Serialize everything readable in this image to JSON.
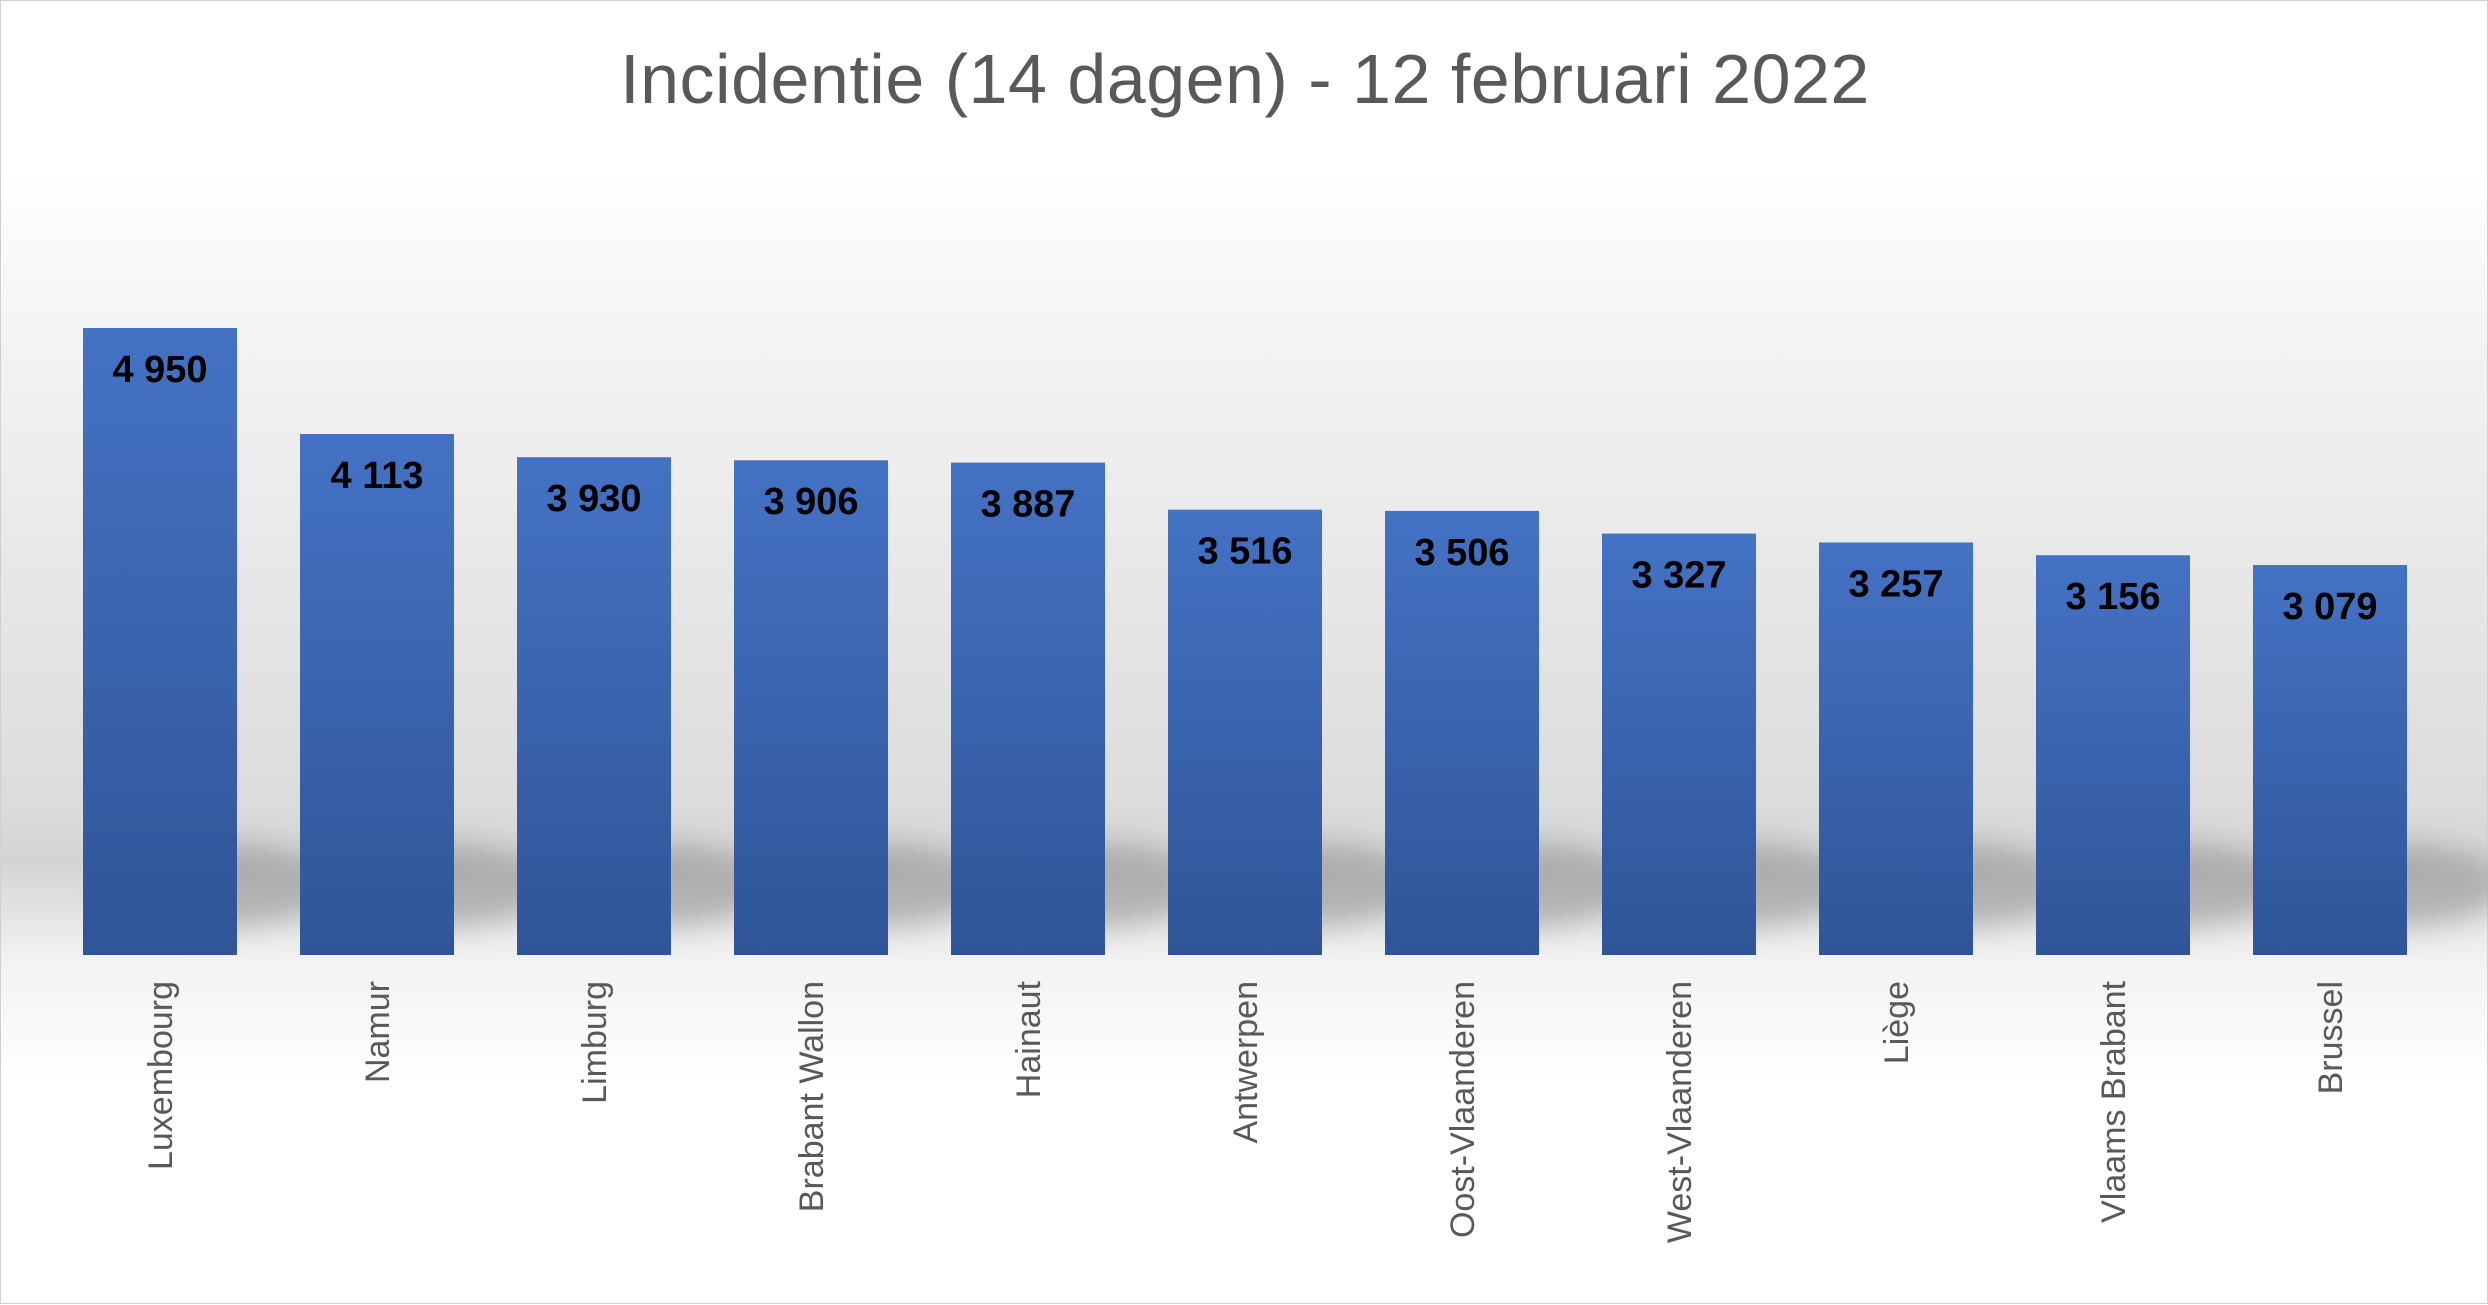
{
  "chart_data": {
    "type": "bar",
    "title": "Incidentie (14 dagen) - 12 februari 2022",
    "xlabel": "",
    "ylabel": "",
    "categories": [
      "Luxembourg",
      "Namur",
      "Limburg",
      "Brabant Wallon",
      "Hainaut",
      "Antwerpen",
      "Oost-Vlaanderen",
      "West-Vlaanderen",
      "Liège",
      "Vlaams Brabant",
      "Brussel"
    ],
    "values": [
      4950,
      4113,
      3930,
      3906,
      3887,
      3516,
      3506,
      3327,
      3257,
      3156,
      3079
    ],
    "value_labels": [
      "4 950",
      "4 113",
      "3 930",
      "3 906",
      "3 887",
      "3 516",
      "3 506",
      "3 327",
      "3 257",
      "3 156",
      "3 079"
    ],
    "ylim": [
      0,
      4950
    ],
    "grid": false,
    "legend": "none",
    "colors": {
      "bar_top": "#4472C4",
      "bar_bottom": "#2F5597"
    }
  }
}
